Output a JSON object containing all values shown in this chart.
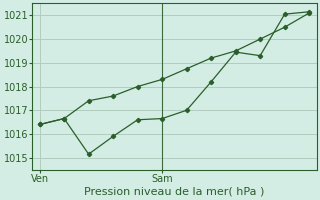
{
  "title": "Pression niveau de la mer( hPa )",
  "bg_color": "#d4ede4",
  "grid_color": "#b0ccbf",
  "line_color": "#2a5e2a",
  "ylim": [
    1014.5,
    1021.5
  ],
  "yticks": [
    1015,
    1016,
    1017,
    1018,
    1019,
    1020,
    1021
  ],
  "xtick_labels": [
    "Ven",
    "Sam"
  ],
  "xtick_positions": [
    0,
    5
  ],
  "vline_x": 5,
  "xlim": [
    -0.3,
    11.3
  ],
  "series1_x": [
    0,
    1,
    2,
    3,
    4,
    5,
    6,
    7,
    8,
    9,
    10,
    11
  ],
  "series1_y": [
    1016.4,
    1016.65,
    1017.4,
    1017.6,
    1018.0,
    1018.3,
    1018.75,
    1019.2,
    1019.5,
    1020.0,
    1020.5,
    1021.1
  ],
  "series2_x": [
    0,
    1,
    2,
    3,
    4,
    5,
    6,
    7,
    8,
    9,
    10,
    11
  ],
  "series2_y": [
    1016.4,
    1016.65,
    1015.15,
    1015.9,
    1016.6,
    1016.65,
    1017.0,
    1018.2,
    1019.45,
    1019.3,
    1021.05,
    1021.15
  ],
  "xlabel_fontsize": 8,
  "tick_fontsize": 7,
  "spine_color": "#2a5e2a",
  "vline_color": "#3a6a3a"
}
